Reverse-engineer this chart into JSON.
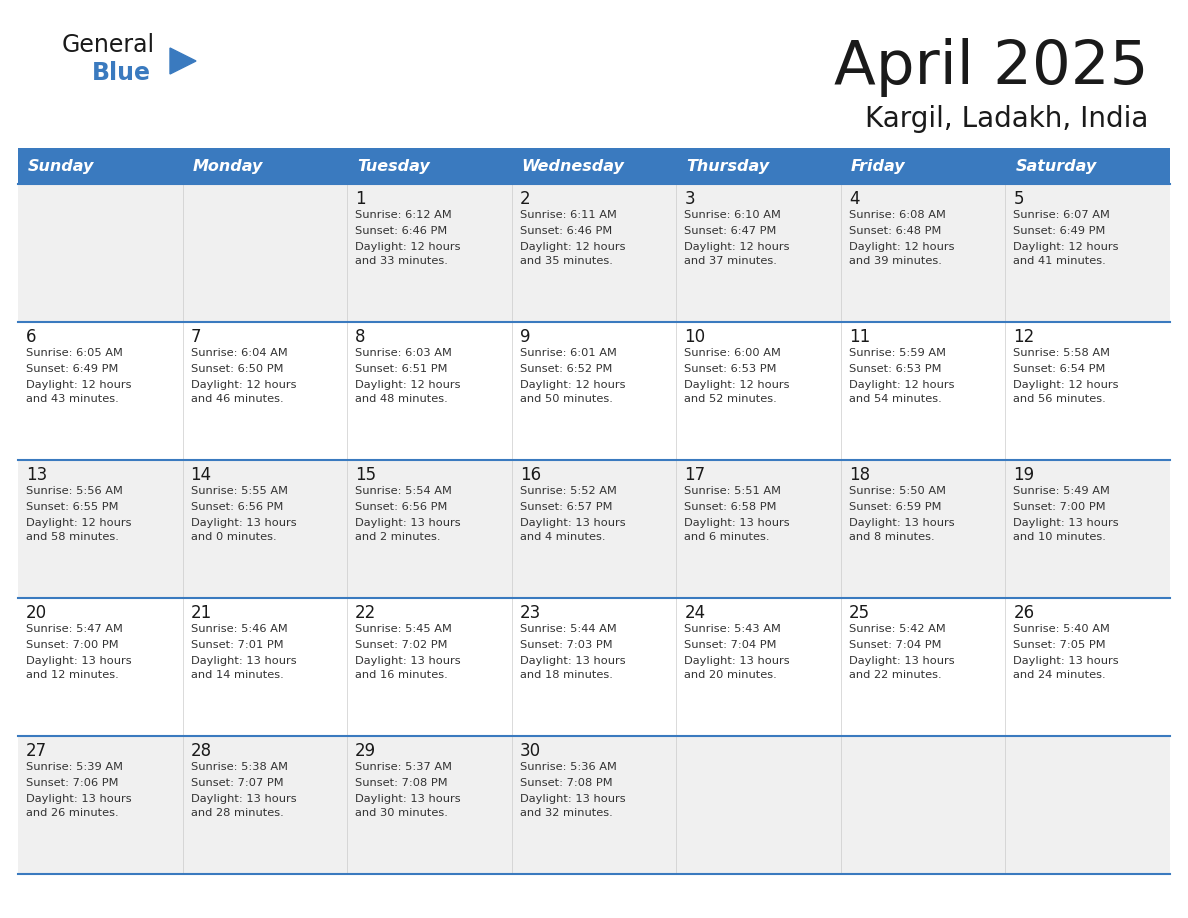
{
  "title": "April 2025",
  "subtitle": "Kargil, Ladakh, India",
  "days_of_week": [
    "Sunday",
    "Monday",
    "Tuesday",
    "Wednesday",
    "Thursday",
    "Friday",
    "Saturday"
  ],
  "header_bg": "#3a7abf",
  "header_text": "#ffffff",
  "row_bg_even": "#f0f0f0",
  "row_bg_odd": "#ffffff",
  "cell_text": "#333333",
  "day_num_color": "#1a1a1a",
  "border_color": "#3a7abf",
  "title_color": "#1a1a1a",
  "subtitle_color": "#1a1a1a",
  "logo_general_color": "#1a1a1a",
  "logo_blue_color": "#3a7abf",
  "weeks": [
    [
      {
        "day": "",
        "sunrise": "",
        "sunset": "",
        "daylight": ""
      },
      {
        "day": "",
        "sunrise": "",
        "sunset": "",
        "daylight": ""
      },
      {
        "day": "1",
        "sunrise": "Sunrise: 6:12 AM",
        "sunset": "Sunset: 6:46 PM",
        "daylight": "Daylight: 12 hours\nand 33 minutes."
      },
      {
        "day": "2",
        "sunrise": "Sunrise: 6:11 AM",
        "sunset": "Sunset: 6:46 PM",
        "daylight": "Daylight: 12 hours\nand 35 minutes."
      },
      {
        "day": "3",
        "sunrise": "Sunrise: 6:10 AM",
        "sunset": "Sunset: 6:47 PM",
        "daylight": "Daylight: 12 hours\nand 37 minutes."
      },
      {
        "day": "4",
        "sunrise": "Sunrise: 6:08 AM",
        "sunset": "Sunset: 6:48 PM",
        "daylight": "Daylight: 12 hours\nand 39 minutes."
      },
      {
        "day": "5",
        "sunrise": "Sunrise: 6:07 AM",
        "sunset": "Sunset: 6:49 PM",
        "daylight": "Daylight: 12 hours\nand 41 minutes."
      }
    ],
    [
      {
        "day": "6",
        "sunrise": "Sunrise: 6:05 AM",
        "sunset": "Sunset: 6:49 PM",
        "daylight": "Daylight: 12 hours\nand 43 minutes."
      },
      {
        "day": "7",
        "sunrise": "Sunrise: 6:04 AM",
        "sunset": "Sunset: 6:50 PM",
        "daylight": "Daylight: 12 hours\nand 46 minutes."
      },
      {
        "day": "8",
        "sunrise": "Sunrise: 6:03 AM",
        "sunset": "Sunset: 6:51 PM",
        "daylight": "Daylight: 12 hours\nand 48 minutes."
      },
      {
        "day": "9",
        "sunrise": "Sunrise: 6:01 AM",
        "sunset": "Sunset: 6:52 PM",
        "daylight": "Daylight: 12 hours\nand 50 minutes."
      },
      {
        "day": "10",
        "sunrise": "Sunrise: 6:00 AM",
        "sunset": "Sunset: 6:53 PM",
        "daylight": "Daylight: 12 hours\nand 52 minutes."
      },
      {
        "day": "11",
        "sunrise": "Sunrise: 5:59 AM",
        "sunset": "Sunset: 6:53 PM",
        "daylight": "Daylight: 12 hours\nand 54 minutes."
      },
      {
        "day": "12",
        "sunrise": "Sunrise: 5:58 AM",
        "sunset": "Sunset: 6:54 PM",
        "daylight": "Daylight: 12 hours\nand 56 minutes."
      }
    ],
    [
      {
        "day": "13",
        "sunrise": "Sunrise: 5:56 AM",
        "sunset": "Sunset: 6:55 PM",
        "daylight": "Daylight: 12 hours\nand 58 minutes."
      },
      {
        "day": "14",
        "sunrise": "Sunrise: 5:55 AM",
        "sunset": "Sunset: 6:56 PM",
        "daylight": "Daylight: 13 hours\nand 0 minutes."
      },
      {
        "day": "15",
        "sunrise": "Sunrise: 5:54 AM",
        "sunset": "Sunset: 6:56 PM",
        "daylight": "Daylight: 13 hours\nand 2 minutes."
      },
      {
        "day": "16",
        "sunrise": "Sunrise: 5:52 AM",
        "sunset": "Sunset: 6:57 PM",
        "daylight": "Daylight: 13 hours\nand 4 minutes."
      },
      {
        "day": "17",
        "sunrise": "Sunrise: 5:51 AM",
        "sunset": "Sunset: 6:58 PM",
        "daylight": "Daylight: 13 hours\nand 6 minutes."
      },
      {
        "day": "18",
        "sunrise": "Sunrise: 5:50 AM",
        "sunset": "Sunset: 6:59 PM",
        "daylight": "Daylight: 13 hours\nand 8 minutes."
      },
      {
        "day": "19",
        "sunrise": "Sunrise: 5:49 AM",
        "sunset": "Sunset: 7:00 PM",
        "daylight": "Daylight: 13 hours\nand 10 minutes."
      }
    ],
    [
      {
        "day": "20",
        "sunrise": "Sunrise: 5:47 AM",
        "sunset": "Sunset: 7:00 PM",
        "daylight": "Daylight: 13 hours\nand 12 minutes."
      },
      {
        "day": "21",
        "sunrise": "Sunrise: 5:46 AM",
        "sunset": "Sunset: 7:01 PM",
        "daylight": "Daylight: 13 hours\nand 14 minutes."
      },
      {
        "day": "22",
        "sunrise": "Sunrise: 5:45 AM",
        "sunset": "Sunset: 7:02 PM",
        "daylight": "Daylight: 13 hours\nand 16 minutes."
      },
      {
        "day": "23",
        "sunrise": "Sunrise: 5:44 AM",
        "sunset": "Sunset: 7:03 PM",
        "daylight": "Daylight: 13 hours\nand 18 minutes."
      },
      {
        "day": "24",
        "sunrise": "Sunrise: 5:43 AM",
        "sunset": "Sunset: 7:04 PM",
        "daylight": "Daylight: 13 hours\nand 20 minutes."
      },
      {
        "day": "25",
        "sunrise": "Sunrise: 5:42 AM",
        "sunset": "Sunset: 7:04 PM",
        "daylight": "Daylight: 13 hours\nand 22 minutes."
      },
      {
        "day": "26",
        "sunrise": "Sunrise: 5:40 AM",
        "sunset": "Sunset: 7:05 PM",
        "daylight": "Daylight: 13 hours\nand 24 minutes."
      }
    ],
    [
      {
        "day": "27",
        "sunrise": "Sunrise: 5:39 AM",
        "sunset": "Sunset: 7:06 PM",
        "daylight": "Daylight: 13 hours\nand 26 minutes."
      },
      {
        "day": "28",
        "sunrise": "Sunrise: 5:38 AM",
        "sunset": "Sunset: 7:07 PM",
        "daylight": "Daylight: 13 hours\nand 28 minutes."
      },
      {
        "day": "29",
        "sunrise": "Sunrise: 5:37 AM",
        "sunset": "Sunset: 7:08 PM",
        "daylight": "Daylight: 13 hours\nand 30 minutes."
      },
      {
        "day": "30",
        "sunrise": "Sunrise: 5:36 AM",
        "sunset": "Sunset: 7:08 PM",
        "daylight": "Daylight: 13 hours\nand 32 minutes."
      },
      {
        "day": "",
        "sunrise": "",
        "sunset": "",
        "daylight": ""
      },
      {
        "day": "",
        "sunrise": "",
        "sunset": "",
        "daylight": ""
      },
      {
        "day": "",
        "sunrise": "",
        "sunset": "",
        "daylight": ""
      }
    ]
  ]
}
